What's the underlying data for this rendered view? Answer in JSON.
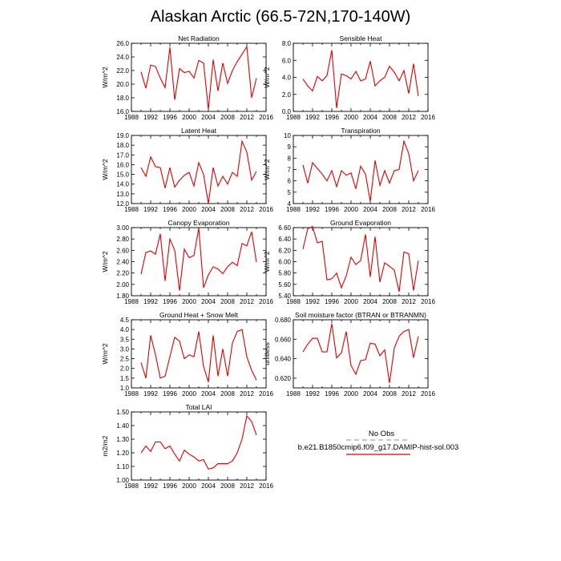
{
  "figure": {
    "title": "Alaskan Arctic (66.5-72N,170-140W)",
    "colors": {
      "series": "#e00000",
      "obs": "#a0a0c8",
      "axis": "#000000"
    }
  },
  "legend": {
    "entries": [
      {
        "label": "No Obs",
        "color": "#a0a0c8",
        "style": "dashed"
      },
      {
        "label": "b.e21.B1850cmip6.f09_g17.DAMIP-hist-sol.003",
        "color": "#e00000",
        "style": "solid"
      }
    ]
  },
  "chart_data": [
    {
      "type": "line",
      "title": "Net Radiation",
      "ylabel": "W/m^2",
      "xlim": [
        1988,
        2016
      ],
      "ylim": [
        16.0,
        26.0
      ],
      "xticks": [
        1988,
        1992,
        1996,
        2000,
        2004,
        2008,
        2012,
        2016
      ],
      "yticks": [
        "16.0",
        "18.0",
        "20.0",
        "22.0",
        "24.0",
        "26.0"
      ],
      "x": [
        1990,
        1991,
        1992,
        1993,
        1994,
        1995,
        1996,
        1997,
        1998,
        1999,
        2000,
        2001,
        2002,
        2003,
        2004,
        2005,
        2006,
        2007,
        2008,
        2009,
        2010,
        2011,
        2012,
        2013,
        2014
      ],
      "values": [
        21.8,
        19.4,
        22.8,
        22.6,
        20.9,
        19.5,
        25.4,
        17.7,
        22.3,
        21.7,
        21.9,
        20.9,
        23.5,
        23.1,
        16.3,
        23.6,
        19.0,
        23.1,
        20.1,
        22.0,
        23.3,
        24.4,
        25.5,
        18.0,
        20.9
      ]
    },
    {
      "type": "line",
      "title": "Sensible Heat",
      "ylabel": "W/m^2",
      "xlim": [
        1988,
        2016
      ],
      "ylim": [
        0.0,
        8.0
      ],
      "xticks": [
        1988,
        1992,
        1996,
        2000,
        2004,
        2008,
        2012,
        2016
      ],
      "yticks": [
        "0.0",
        "2.0",
        "4.0",
        "6.0",
        "8.0"
      ],
      "x": [
        1990,
        1991,
        1992,
        1993,
        1994,
        1995,
        1996,
        1997,
        1998,
        1999,
        2000,
        2001,
        2002,
        2003,
        2004,
        2005,
        2006,
        2007,
        2008,
        2009,
        2010,
        2011,
        2012,
        2013,
        2014
      ],
      "values": [
        3.8,
        3.0,
        2.4,
        4.1,
        3.6,
        4.2,
        7.2,
        0.4,
        4.4,
        4.2,
        3.8,
        4.7,
        3.6,
        3.8,
        5.9,
        3.0,
        3.6,
        4.0,
        5.3,
        4.6,
        3.6,
        4.8,
        2.1,
        5.6,
        1.8
      ]
    },
    {
      "type": "line",
      "title": "Latent Heat",
      "ylabel": "W/m^2",
      "xlim": [
        1988,
        2016
      ],
      "ylim": [
        12.0,
        19.0
      ],
      "xticks": [
        1988,
        1992,
        1996,
        2000,
        2004,
        2008,
        2012,
        2016
      ],
      "yticks": [
        "12.0",
        "13.0",
        "14.0",
        "15.0",
        "16.0",
        "17.0",
        "18.0",
        "19.0"
      ],
      "x": [
        1990,
        1991,
        1992,
        1993,
        1994,
        1995,
        1996,
        1997,
        1998,
        1999,
        2000,
        2001,
        2002,
        2003,
        2004,
        2005,
        2006,
        2007,
        2008,
        2009,
        2010,
        2011,
        2012,
        2013,
        2014
      ],
      "values": [
        15.7,
        14.8,
        16.8,
        15.8,
        15.7,
        13.6,
        15.7,
        13.7,
        14.4,
        14.9,
        15.2,
        13.8,
        16.2,
        15.0,
        12.0,
        15.7,
        13.8,
        14.8,
        14.0,
        15.2,
        14.8,
        18.4,
        17.3,
        14.4,
        15.3
      ]
    },
    {
      "type": "line",
      "title": "Transpiration",
      "ylabel": "W/m^2",
      "xlim": [
        1988,
        2016
      ],
      "ylim": [
        4,
        10
      ],
      "xticks": [
        1988,
        1992,
        1996,
        2000,
        2004,
        2008,
        2012,
        2016
      ],
      "yticks": [
        "4",
        "5",
        "6",
        "7",
        "8",
        "9",
        "10"
      ],
      "x": [
        1990,
        1991,
        1992,
        1993,
        1994,
        1995,
        1996,
        1997,
        1998,
        1999,
        2000,
        2001,
        2002,
        2003,
        2004,
        2005,
        2006,
        2007,
        2008,
        2009,
        2010,
        2011,
        2012,
        2013,
        2014
      ],
      "values": [
        7.4,
        5.8,
        7.6,
        7.1,
        6.6,
        6.0,
        6.9,
        5.5,
        6.9,
        6.5,
        6.7,
        5.3,
        7.3,
        6.6,
        4.2,
        7.8,
        5.6,
        6.9,
        5.8,
        6.9,
        7.0,
        9.5,
        8.4,
        6.0,
        6.9
      ]
    },
    {
      "type": "line",
      "title": "Canopy Evaporation",
      "ylabel": "W/m^2",
      "xlim": [
        1988,
        2016
      ],
      "ylim": [
        1.8,
        3.0
      ],
      "xticks": [
        1988,
        1992,
        1996,
        2000,
        2004,
        2008,
        2012,
        2016
      ],
      "yticks": [
        "1.80",
        "2.00",
        "2.20",
        "2.40",
        "2.60",
        "2.80",
        "3.00"
      ],
      "x": [
        1990,
        1991,
        1992,
        1993,
        1994,
        1995,
        1996,
        1997,
        1998,
        1999,
        2000,
        2001,
        2002,
        2003,
        2004,
        2005,
        2006,
        2007,
        2008,
        2009,
        2010,
        2011,
        2012,
        2013,
        2014
      ],
      "values": [
        2.18,
        2.56,
        2.59,
        2.53,
        2.89,
        2.06,
        2.8,
        2.6,
        1.89,
        2.62,
        2.47,
        2.51,
        2.99,
        1.94,
        2.17,
        2.31,
        2.27,
        2.19,
        2.31,
        2.39,
        2.33,
        2.72,
        2.68,
        2.93,
        2.39
      ]
    },
    {
      "type": "line",
      "title": "Ground Evaporation",
      "ylabel": "W/m^2",
      "xlim": [
        1988,
        2016
      ],
      "ylim": [
        5.4,
        6.6
      ],
      "xticks": [
        1988,
        1992,
        1996,
        2000,
        2004,
        2008,
        2012,
        2016
      ],
      "yticks": [
        "5.40",
        "5.60",
        "5.80",
        "6.00",
        "6.20",
        "6.40",
        "6.60"
      ],
      "x": [
        1990,
        1991,
        1992,
        1993,
        1994,
        1995,
        1996,
        1997,
        1998,
        1999,
        2000,
        2001,
        2002,
        2003,
        2004,
        2005,
        2006,
        2007,
        2008,
        2009,
        2010,
        2011,
        2012,
        2013,
        2014
      ],
      "values": [
        6.22,
        6.58,
        6.62,
        6.33,
        6.36,
        5.68,
        5.7,
        5.8,
        5.54,
        5.75,
        6.08,
        5.95,
        6.02,
        6.48,
        5.73,
        6.44,
        5.64,
        5.98,
        5.92,
        5.85,
        5.47,
        6.17,
        6.14,
        5.49,
        6.02
      ]
    },
    {
      "type": "line",
      "title": "Ground Heat + Snow Melt",
      "ylabel": "W/m^2",
      "xlim": [
        1988,
        2016
      ],
      "ylim": [
        1.0,
        4.5
      ],
      "xticks": [
        1988,
        1992,
        1996,
        2000,
        2004,
        2008,
        2012,
        2016
      ],
      "yticks": [
        "1.0",
        "1.5",
        "2.0",
        "2.5",
        "3.0",
        "3.5",
        "4.0",
        "4.5"
      ],
      "x": [
        1990,
        1991,
        1992,
        1993,
        1994,
        1995,
        1996,
        1997,
        1998,
        1999,
        2000,
        2001,
        2002,
        2003,
        2004,
        2005,
        2006,
        2007,
        2008,
        2009,
        2010,
        2011,
        2012,
        2013,
        2014
      ],
      "values": [
        2.3,
        1.5,
        3.7,
        2.7,
        1.5,
        1.6,
        2.6,
        3.6,
        3.4,
        2.5,
        2.7,
        2.6,
        3.9,
        2.1,
        1.3,
        3.7,
        1.6,
        3.0,
        1.6,
        3.3,
        3.9,
        4.0,
        2.6,
        1.9,
        1.4
      ]
    },
    {
      "type": "line",
      "title": "Soil moisture factor (BTRAN or BTRANMN)",
      "ylabel": "unitless",
      "xlim": [
        1988,
        2016
      ],
      "ylim": [
        0.61,
        0.68
      ],
      "xticks": [
        1988,
        1992,
        1996,
        2000,
        2004,
        2008,
        2012,
        2016
      ],
      "yticks": [
        "0.620",
        "0.640",
        "0.660",
        "0.680"
      ],
      "x": [
        1990,
        1991,
        1992,
        1993,
        1994,
        1995,
        1996,
        1997,
        1998,
        1999,
        2000,
        2001,
        2002,
        2003,
        2004,
        2005,
        2006,
        2007,
        2008,
        2009,
        2010,
        2011,
        2012,
        2013,
        2014
      ],
      "values": [
        0.647,
        0.655,
        0.661,
        0.661,
        0.647,
        0.647,
        0.676,
        0.641,
        0.646,
        0.668,
        0.633,
        0.624,
        0.638,
        0.639,
        0.656,
        0.655,
        0.643,
        0.649,
        0.615,
        0.651,
        0.663,
        0.668,
        0.67,
        0.641,
        0.663
      ]
    },
    {
      "type": "line",
      "title": "Total LAI",
      "ylabel": "m2/m2",
      "xlim": [
        1988,
        2016
      ],
      "ylim": [
        1.0,
        1.5
      ],
      "xticks": [
        1988,
        1992,
        1996,
        2000,
        2004,
        2008,
        2012,
        2016
      ],
      "yticks": [
        "1.00",
        "1.10",
        "1.20",
        "1.30",
        "1.40",
        "1.50"
      ],
      "x": [
        1990,
        1991,
        1992,
        1993,
        1994,
        1995,
        1996,
        1997,
        1998,
        1999,
        2000,
        2001,
        2002,
        2003,
        2004,
        2005,
        2006,
        2007,
        2008,
        2009,
        2010,
        2011,
        2012,
        2013,
        2014
      ],
      "values": [
        1.2,
        1.25,
        1.21,
        1.28,
        1.28,
        1.23,
        1.25,
        1.19,
        1.14,
        1.22,
        1.19,
        1.17,
        1.14,
        1.15,
        1.08,
        1.09,
        1.12,
        1.12,
        1.12,
        1.14,
        1.2,
        1.3,
        1.47,
        1.43,
        1.33
      ]
    }
  ]
}
